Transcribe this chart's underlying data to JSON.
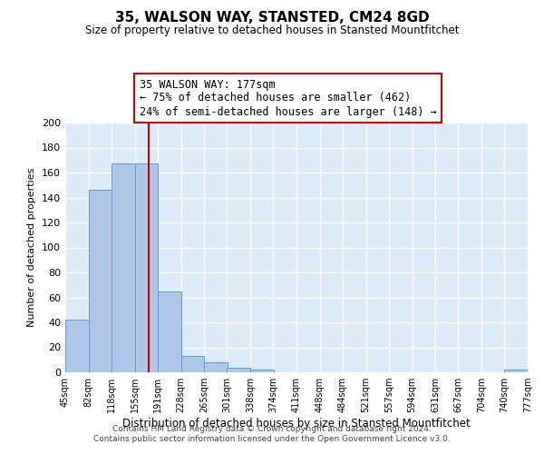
{
  "title": "35, WALSON WAY, STANSTED, CM24 8GD",
  "subtitle": "Size of property relative to detached houses in Stansted Mountfitchet",
  "xlabel": "Distribution of detached houses by size in Stansted Mountfitchet",
  "ylabel": "Number of detached properties",
  "footer_line1": "Contains HM Land Registry data © Crown copyright and database right 2024.",
  "footer_line2": "Contains public sector information licensed under the Open Government Licence v3.0.",
  "bin_edges": [
    45,
    82,
    118,
    155,
    191,
    228,
    265,
    301,
    338,
    374,
    411,
    448,
    484,
    521,
    557,
    594,
    631,
    667,
    704,
    740,
    777
  ],
  "bar_heights": [
    42,
    146,
    167,
    167,
    65,
    13,
    8,
    4,
    2,
    0,
    0,
    0,
    0,
    0,
    0,
    0,
    0,
    0,
    0,
    2
  ],
  "bar_color": "#aec6e8",
  "bar_edge_color": "#5b9bd5",
  "bg_color": "#ddeaf7",
  "plot_bg_color": "#ddeaf7",
  "grid_color": "#ffffff",
  "vline_x": 177,
  "vline_color": "#cc0000",
  "annotation_title": "35 WALSON WAY: 177sqm",
  "annotation_line1": "← 75% of detached houses are smaller (462)",
  "annotation_line2": "24% of semi-detached houses are larger (148) →",
  "annotation_box_color": "#ffffff",
  "annotation_box_edge": "#cc0000",
  "ylim": [
    0,
    200
  ],
  "yticks": [
    0,
    20,
    40,
    60,
    80,
    100,
    120,
    140,
    160,
    180,
    200
  ],
  "tick_labels": [
    "45sqm",
    "82sqm",
    "118sqm",
    "155sqm",
    "191sqm",
    "228sqm",
    "265sqm",
    "301sqm",
    "338sqm",
    "374sqm",
    "411sqm",
    "448sqm",
    "484sqm",
    "521sqm",
    "557sqm",
    "594sqm",
    "631sqm",
    "667sqm",
    "704sqm",
    "740sqm",
    "777sqm"
  ]
}
